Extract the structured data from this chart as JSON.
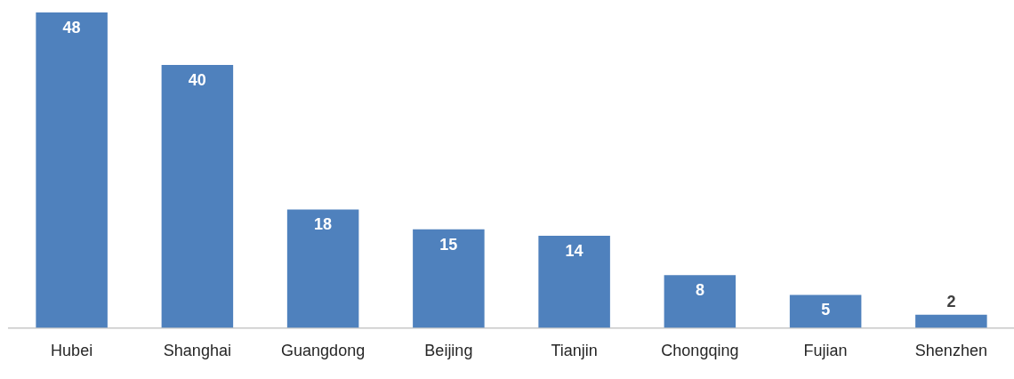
{
  "chart_data": {
    "type": "bar",
    "categories": [
      "Hubei",
      "Shanghai",
      "Guangdong",
      "Beijing",
      "Tianjin",
      "Chongqing",
      "Fujian",
      "Shenzhen"
    ],
    "values": [
      48,
      40,
      18,
      15,
      14,
      8,
      5,
      2
    ],
    "color": "#4f81bd",
    "data_labels": true,
    "tick_labels": "x",
    "grid": false,
    "legend": false
  }
}
